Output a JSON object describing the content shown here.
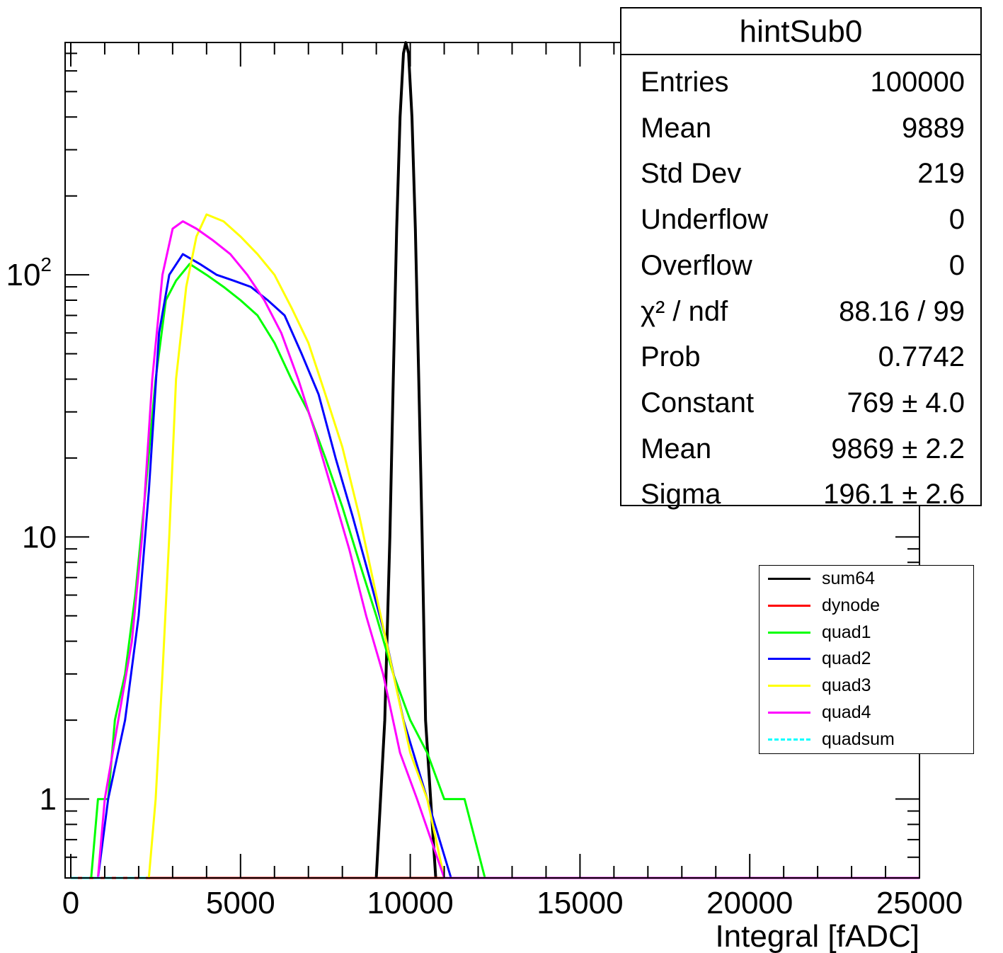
{
  "chart_data": {
    "type": "line",
    "xlabel": "Integral [fADC]",
    "ylabel": "",
    "xlim": [
      0,
      25000
    ],
    "ylim": [
      0.5,
      770
    ],
    "yscale": "log",
    "x_ticks": [
      "0",
      "5000",
      "10000",
      "15000",
      "20000",
      "25000"
    ],
    "y_ticks": [
      {
        "value": 1,
        "label": "1"
      },
      {
        "value": 10,
        "label": "10"
      },
      {
        "value": 100,
        "label": "10",
        "sup": "2"
      }
    ],
    "legend_position": "right",
    "series": [
      {
        "name": "sum64",
        "color": "#000000",
        "style": "solid",
        "points": [
          [
            9000,
            0.5
          ],
          [
            9250,
            2
          ],
          [
            9400,
            10
          ],
          [
            9500,
            40
          ],
          [
            9600,
            150
          ],
          [
            9700,
            400
          ],
          [
            9800,
            700
          ],
          [
            9869,
            769
          ],
          [
            9950,
            700
          ],
          [
            10050,
            400
          ],
          [
            10150,
            150
          ],
          [
            10250,
            40
          ],
          [
            10350,
            10
          ],
          [
            10450,
            2
          ],
          [
            10600,
            1
          ],
          [
            10750,
            0.5
          ]
        ]
      },
      {
        "name": "dynode",
        "color": "#ff0000",
        "style": "solid",
        "points": [
          [
            0,
            0.5
          ],
          [
            25000,
            0.5
          ]
        ]
      },
      {
        "name": "quad1",
        "color": "#00ff00",
        "style": "solid",
        "points": [
          [
            600,
            0.5
          ],
          [
            800,
            1
          ],
          [
            1100,
            1
          ],
          [
            1300,
            2
          ],
          [
            1600,
            3
          ],
          [
            1900,
            6
          ],
          [
            2200,
            15
          ],
          [
            2500,
            40
          ],
          [
            2800,
            80
          ],
          [
            3100,
            95
          ],
          [
            3500,
            110
          ],
          [
            4000,
            100
          ],
          [
            4500,
            90
          ],
          [
            5000,
            80
          ],
          [
            5500,
            70
          ],
          [
            6000,
            55
          ],
          [
            6500,
            40
          ],
          [
            7000,
            30
          ],
          [
            7500,
            20
          ],
          [
            8000,
            13
          ],
          [
            8500,
            8
          ],
          [
            9000,
            5
          ],
          [
            9500,
            3
          ],
          [
            10000,
            2
          ],
          [
            10500,
            1.5
          ],
          [
            11000,
            1
          ],
          [
            11600,
            1
          ],
          [
            12200,
            0.5
          ]
        ]
      },
      {
        "name": "quad2",
        "color": "#0000ff",
        "style": "solid",
        "points": [
          [
            800,
            0.5
          ],
          [
            1100,
            1
          ],
          [
            1600,
            2
          ],
          [
            2000,
            5
          ],
          [
            2300,
            15
          ],
          [
            2600,
            60
          ],
          [
            2900,
            100
          ],
          [
            3300,
            120
          ],
          [
            3800,
            110
          ],
          [
            4300,
            100
          ],
          [
            4800,
            95
          ],
          [
            5300,
            90
          ],
          [
            5800,
            80
          ],
          [
            6300,
            70
          ],
          [
            6800,
            50
          ],
          [
            7300,
            35
          ],
          [
            7800,
            20
          ],
          [
            8300,
            12
          ],
          [
            8800,
            7
          ],
          [
            9300,
            4
          ],
          [
            9800,
            2
          ],
          [
            10500,
            1
          ],
          [
            11200,
            0.5
          ]
        ]
      },
      {
        "name": "quad3",
        "color": "#ffff00",
        "style": "solid",
        "points": [
          [
            2300,
            0.5
          ],
          [
            2500,
            1
          ],
          [
            2700,
            3
          ],
          [
            2900,
            10
          ],
          [
            3100,
            40
          ],
          [
            3400,
            90
          ],
          [
            3700,
            140
          ],
          [
            4000,
            170
          ],
          [
            4500,
            160
          ],
          [
            5000,
            140
          ],
          [
            5500,
            120
          ],
          [
            6000,
            100
          ],
          [
            6500,
            75
          ],
          [
            7000,
            55
          ],
          [
            7500,
            35
          ],
          [
            8000,
            22
          ],
          [
            8500,
            12
          ],
          [
            9000,
            6
          ],
          [
            9500,
            3
          ],
          [
            10000,
            1.5
          ],
          [
            10500,
            1
          ],
          [
            11000,
            0.5
          ]
        ]
      },
      {
        "name": "quad4",
        "color": "#ff00ff",
        "style": "solid",
        "points": [
          [
            800,
            0.5
          ],
          [
            1000,
            1
          ],
          [
            1400,
            2
          ],
          [
            1800,
            4
          ],
          [
            2100,
            10
          ],
          [
            2400,
            40
          ],
          [
            2700,
            100
          ],
          [
            3000,
            150
          ],
          [
            3300,
            160
          ],
          [
            3700,
            150
          ],
          [
            4200,
            135
          ],
          [
            4700,
            120
          ],
          [
            5200,
            100
          ],
          [
            5700,
            80
          ],
          [
            6200,
            60
          ],
          [
            6700,
            40
          ],
          [
            7200,
            25
          ],
          [
            7700,
            15
          ],
          [
            8200,
            9
          ],
          [
            8700,
            5
          ],
          [
            9200,
            3
          ],
          [
            9700,
            1.5
          ],
          [
            10200,
            1
          ],
          [
            11000,
            0.5
          ],
          [
            25000,
            0.5
          ]
        ]
      },
      {
        "name": "quadsum",
        "color": "#00ffff",
        "style": "dashed",
        "points": [
          [
            0,
            0.5
          ],
          [
            2300,
            0.5
          ]
        ]
      }
    ]
  },
  "stats": {
    "title": "hintSub0",
    "rows": [
      {
        "key": "Entries",
        "value": "100000"
      },
      {
        "key": "Mean",
        "value": "9889"
      },
      {
        "key": "Std Dev",
        "value": "219"
      },
      {
        "key": "Underflow",
        "value": "0"
      },
      {
        "key": "Overflow",
        "value": "0"
      },
      {
        "key": "χ² / ndf",
        "value": "88.16 / 99"
      },
      {
        "key": "Prob",
        "value": "0.7742"
      },
      {
        "key": "Constant",
        "value": "769 ± 4.0"
      },
      {
        "key": "Mean",
        "value": "9869 ± 2.2"
      },
      {
        "key": "Sigma",
        "value": "196.1 ± 2.6"
      }
    ]
  }
}
